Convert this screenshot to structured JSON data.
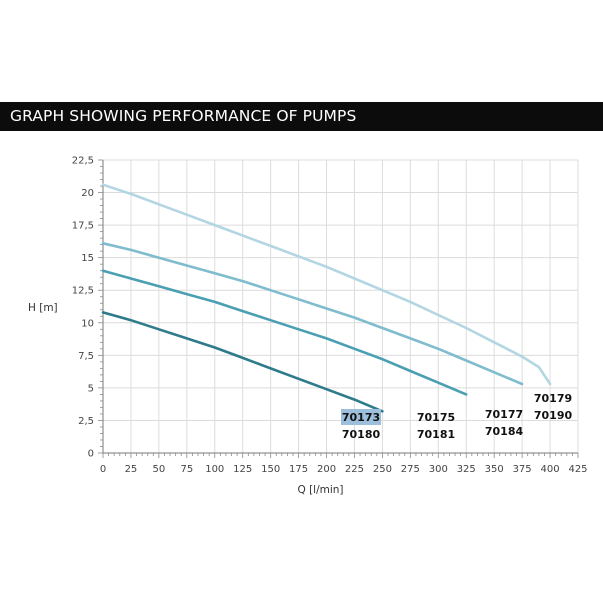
{
  "header": {
    "title": "GRAPH SHOWING PERFORMANCE OF PUMPS"
  },
  "chart_data": {
    "type": "line",
    "title": "GRAPH SHOWING PERFORMANCE OF PUMPS",
    "xlabel": "Q [l/min]",
    "ylabel": "H [m]",
    "xlim": [
      0,
      425
    ],
    "ylim": [
      0,
      22.5
    ],
    "x_ticks": [
      0,
      25,
      50,
      75,
      100,
      125,
      150,
      175,
      200,
      225,
      250,
      275,
      300,
      325,
      350,
      375,
      400,
      425
    ],
    "y_ticks": [
      "0",
      "2,5",
      "5",
      "7,5",
      "10",
      "12,5",
      "15",
      "17,5",
      "20",
      "22,5"
    ],
    "grid": true,
    "series": [
      {
        "labels": [
          "70173",
          "70180"
        ],
        "color": "#2e7b8c",
        "x": [
          0,
          25,
          50,
          75,
          100,
          125,
          150,
          175,
          200,
          225,
          250
        ],
        "y": [
          10.8,
          10.2,
          9.5,
          8.8,
          8.1,
          7.3,
          6.5,
          5.7,
          4.9,
          4.1,
          3.2
        ]
      },
      {
        "labels": [
          "70175",
          "70181"
        ],
        "color": "#4b9fb3",
        "x": [
          0,
          25,
          50,
          75,
          100,
          125,
          150,
          175,
          200,
          225,
          250,
          275,
          300,
          325
        ],
        "y": [
          14.0,
          13.4,
          12.8,
          12.2,
          11.6,
          10.9,
          10.2,
          9.5,
          8.8,
          8.0,
          7.2,
          6.3,
          5.4,
          4.5
        ]
      },
      {
        "labels": [
          "70177",
          "70184"
        ],
        "color": "#7fbcce",
        "x": [
          0,
          25,
          50,
          75,
          100,
          125,
          150,
          175,
          200,
          225,
          250,
          275,
          300,
          325,
          350,
          375
        ],
        "y": [
          16.1,
          15.6,
          15.0,
          14.4,
          13.8,
          13.2,
          12.5,
          11.8,
          11.1,
          10.4,
          9.6,
          8.8,
          8.0,
          7.1,
          6.2,
          5.3
        ]
      },
      {
        "labels": [
          "70179",
          "70190"
        ],
        "color": "#b4d6e2",
        "x": [
          0,
          25,
          50,
          75,
          100,
          125,
          150,
          175,
          200,
          225,
          250,
          275,
          300,
          325,
          350,
          375,
          390,
          400
        ],
        "y": [
          20.6,
          19.9,
          19.1,
          18.3,
          17.5,
          16.7,
          15.9,
          15.1,
          14.3,
          13.4,
          12.5,
          11.6,
          10.6,
          9.6,
          8.5,
          7.4,
          6.6,
          5.3
        ]
      }
    ],
    "highlight_label": "70173"
  }
}
